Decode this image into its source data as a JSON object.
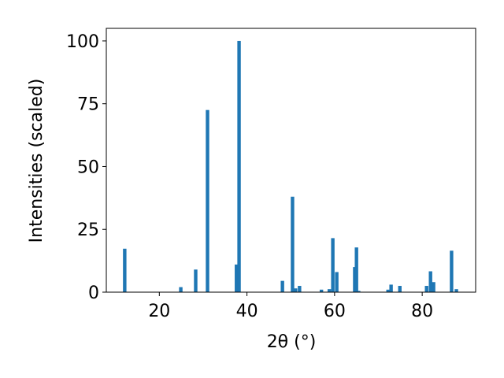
{
  "chart_data": {
    "type": "bar",
    "x_label": "2θ (°)",
    "y_label": "Intensities (scaled)",
    "x": [
      12.1,
      24.9,
      28.3,
      31.0,
      37.6,
      38.2,
      48.1,
      50.4,
      51.1,
      52.0,
      57.0,
      58.8,
      59.6,
      60.5,
      64.6,
      65.0,
      65.5,
      72.2,
      72.9,
      74.9,
      81.0,
      81.9,
      82.6,
      86.7,
      87.8
    ],
    "values": [
      17.3,
      2,
      9,
      72.5,
      11,
      100,
      4.5,
      38,
      1.5,
      2.5,
      1,
      1.2,
      21.5,
      8,
      10,
      17.8,
      0.5,
      1,
      3,
      2.5,
      2.5,
      8.3,
      4,
      16.5,
      1.2
    ],
    "color": "#1f77b4",
    "xlim": [
      7.9,
      92.2
    ],
    "xticks": [
      20,
      40,
      60,
      80
    ],
    "ylim": [
      0,
      105
    ],
    "yticks": [
      0,
      25,
      50,
      75,
      100
    ]
  }
}
